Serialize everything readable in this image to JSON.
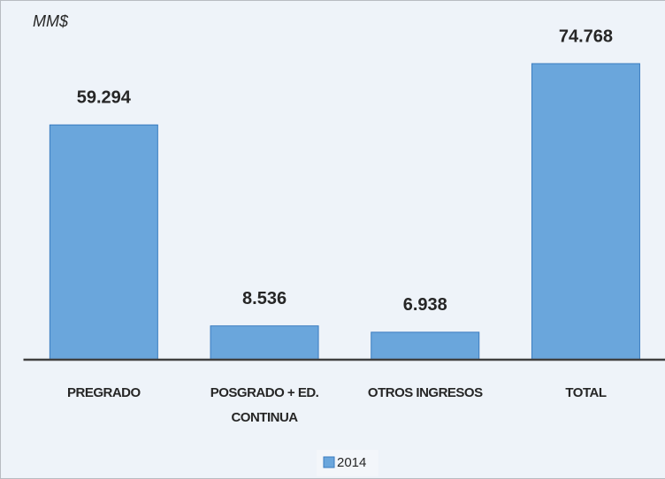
{
  "chart_data": {
    "type": "bar",
    "y_label": "MM$",
    "categories": [
      "PREGRADO",
      "POSGRADO + ED. CONTINUA",
      "OTROS INGRESOS",
      "TOTAL"
    ],
    "series": [
      {
        "name": "2014",
        "color": "#6aa6dc",
        "values": [
          59.294,
          8.536,
          6.938,
          74.768
        ]
      }
    ],
    "legend": "bottom"
  }
}
